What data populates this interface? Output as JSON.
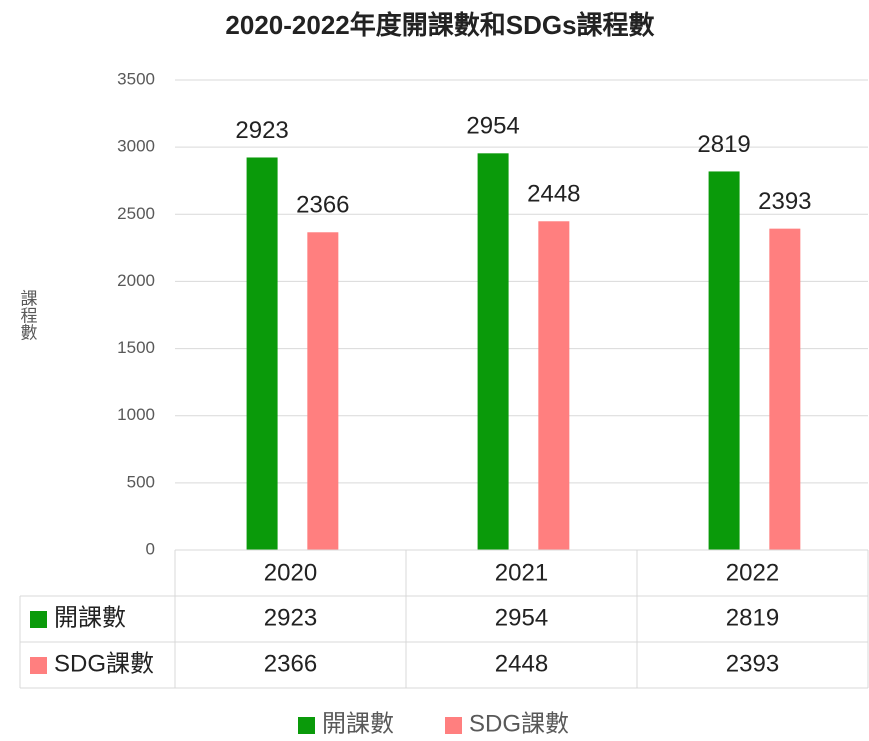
{
  "chart_data": {
    "type": "bar",
    "title": "2020-2022年度開課數和SDGs課程數",
    "y_label": "課程數",
    "categories": [
      "2020",
      "2021",
      "2022"
    ],
    "series": [
      {
        "name": "開課數",
        "color": "#0a9a0a",
        "values": [
          2923,
          2954,
          2819
        ]
      },
      {
        "name": "SDG課數",
        "color": "#ff7f7f",
        "values": [
          2366,
          2448,
          2393
        ]
      }
    ],
    "ylim": [
      0,
      3500
    ],
    "yticks": [
      0,
      500,
      1000,
      1500,
      2000,
      2500,
      3000,
      3500
    ],
    "grid": true,
    "legend": "bottom",
    "data_table": true
  }
}
